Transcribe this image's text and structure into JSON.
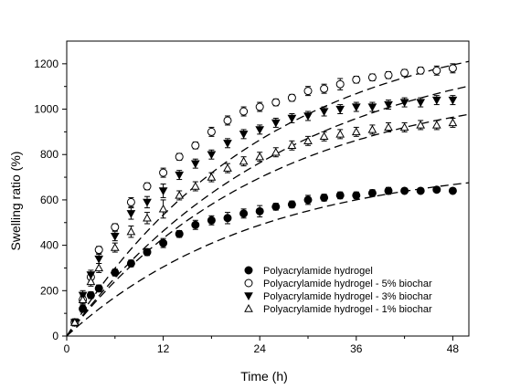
{
  "chart_data": {
    "type": "scatter",
    "title": "",
    "xlabel": "Time (h)",
    "ylabel": "Swelling ratio (%)",
    "xlim": [
      0,
      50
    ],
    "ylim": [
      0,
      1300
    ],
    "xticks": [
      0,
      12,
      24,
      36,
      48
    ],
    "yticks": [
      0,
      200,
      400,
      600,
      800,
      1000,
      1200
    ],
    "grid": false,
    "legend_position": "bottom-right",
    "fit_lines": "dashed",
    "series": [
      {
        "name": "Polyacrylamide hydrogel",
        "marker": "filled-circle",
        "x": [
          1,
          2,
          3,
          4,
          6,
          8,
          10,
          12,
          14,
          16,
          18,
          20,
          22,
          24,
          26,
          28,
          30,
          32,
          34,
          36,
          38,
          40,
          42,
          44,
          46,
          48
        ],
        "y": [
          60,
          120,
          180,
          210,
          280,
          320,
          370,
          410,
          450,
          490,
          510,
          520,
          540,
          550,
          570,
          580,
          600,
          610,
          620,
          620,
          630,
          640,
          640,
          640,
          645,
          640
        ],
        "err": [
          15,
          15,
          15,
          15,
          15,
          15,
          15,
          20,
          15,
          20,
          20,
          25,
          20,
          25,
          15,
          15,
          20,
          15,
          15,
          15,
          15,
          15,
          10,
          10,
          10,
          10
        ],
        "fit": {
          "max": 770,
          "k": 0.042
        }
      },
      {
        "name": "Polyacrylamide hydrogel - 5% biochar",
        "marker": "open-circle",
        "x": [
          1,
          2,
          3,
          4,
          6,
          8,
          10,
          12,
          14,
          16,
          18,
          20,
          22,
          24,
          26,
          28,
          30,
          32,
          34,
          36,
          38,
          40,
          42,
          44,
          46,
          48
        ],
        "y": [
          60,
          160,
          260,
          380,
          480,
          590,
          660,
          720,
          790,
          840,
          900,
          950,
          990,
          1010,
          1030,
          1050,
          1080,
          1090,
          1110,
          1130,
          1140,
          1150,
          1160,
          1170,
          1170,
          1180
        ],
        "err": [
          15,
          15,
          20,
          15,
          15,
          20,
          15,
          20,
          15,
          15,
          20,
          20,
          20,
          20,
          15,
          15,
          20,
          20,
          25,
          15,
          15,
          15,
          15,
          15,
          20,
          20
        ],
        "fit": {
          "max": 1400,
          "k": 0.04
        }
      },
      {
        "name": "Polyacrylamide hydrogel - 3% biochar",
        "marker": "filled-triangle-down",
        "x": [
          1,
          2,
          3,
          4,
          6,
          8,
          10,
          12,
          14,
          16,
          18,
          20,
          22,
          24,
          26,
          28,
          30,
          32,
          34,
          36,
          38,
          40,
          42,
          44,
          46,
          48
        ],
        "y": [
          60,
          180,
          270,
          340,
          440,
          540,
          590,
          640,
          710,
          760,
          800,
          850,
          890,
          910,
          940,
          960,
          970,
          990,
          1000,
          1010,
          1010,
          1020,
          1030,
          1030,
          1040,
          1040
        ],
        "err": [
          15,
          20,
          20,
          20,
          20,
          25,
          25,
          30,
          20,
          20,
          20,
          20,
          20,
          20,
          20,
          20,
          20,
          20,
          20,
          20,
          20,
          20,
          20,
          20,
          20,
          20
        ],
        "fit": {
          "max": 1320,
          "k": 0.036
        }
      },
      {
        "name": "Polyacrylamide hydrogel - 1% biochar",
        "marker": "open-triangle-up",
        "x": [
          1,
          2,
          3,
          4,
          6,
          8,
          10,
          12,
          14,
          16,
          18,
          20,
          22,
          24,
          26,
          28,
          30,
          32,
          34,
          36,
          38,
          40,
          42,
          44,
          46,
          48
        ],
        "y": [
          60,
          160,
          240,
          300,
          390,
          460,
          520,
          560,
          620,
          660,
          700,
          740,
          770,
          790,
          810,
          840,
          860,
          880,
          890,
          900,
          910,
          920,
          920,
          930,
          930,
          940
        ],
        "err": [
          15,
          20,
          20,
          20,
          20,
          25,
          25,
          40,
          20,
          20,
          20,
          20,
          20,
          20,
          20,
          20,
          20,
          20,
          20,
          20,
          20,
          20,
          20,
          20,
          20,
          20
        ],
        "fit": {
          "max": 1130,
          "k": 0.04
        }
      }
    ]
  }
}
